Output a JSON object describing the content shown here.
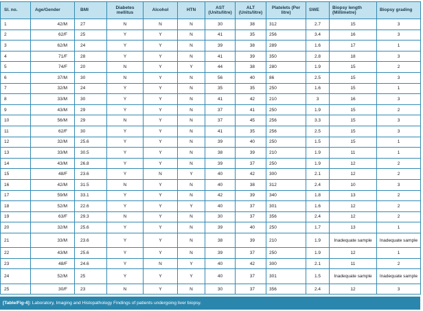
{
  "table": {
    "headers": [
      "Sl. no.",
      "Age/Gender",
      "BMI",
      "Diabetes mellitus",
      "Alcohol",
      "HTN",
      "AST (Units/litre)",
      "ALT (Units/litre)",
      "Platelets (Per litre)",
      "SWE",
      "Biopsy length (Millimetre)",
      "Biopsy grading"
    ],
    "rows": [
      [
        "1",
        "42/M",
        "27",
        "N",
        "N",
        "N",
        "30",
        "38",
        "312",
        "2.7",
        "15",
        "3"
      ],
      [
        "2",
        "62/F",
        "25",
        "Y",
        "Y",
        "N",
        "41",
        "35",
        "256",
        "3.4",
        "16",
        "3"
      ],
      [
        "3",
        "62/M",
        "24",
        "Y",
        "Y",
        "N",
        "39",
        "38",
        "289",
        "1.6",
        "17",
        "1"
      ],
      [
        "4",
        "71/F",
        "28",
        "Y",
        "Y",
        "N",
        "41",
        "39",
        "350",
        "2.8",
        "18",
        "3"
      ],
      [
        "5",
        "74/F",
        "20",
        "N",
        "Y",
        "Y",
        "44",
        "38",
        "280",
        "1.9",
        "15",
        "2"
      ],
      [
        "6",
        "37/M",
        "30",
        "N",
        "Y",
        "N",
        "56",
        "40",
        "86",
        "2.5",
        "15",
        "3"
      ],
      [
        "7",
        "32/M",
        "24",
        "Y",
        "Y",
        "N",
        "35",
        "35",
        "250",
        "1.6",
        "15",
        "1"
      ],
      [
        "8",
        "33/M",
        "30",
        "Y",
        "Y",
        "N",
        "41",
        "42",
        "210",
        "3",
        "16",
        "3"
      ],
      [
        "9",
        "43/M",
        "29",
        "Y",
        "Y",
        "N",
        "37",
        "41",
        "250",
        "1.9",
        "15",
        "2"
      ],
      [
        "10",
        "56/M",
        "29",
        "N",
        "Y",
        "N",
        "37",
        "45",
        "256",
        "3.3",
        "15",
        "3"
      ],
      [
        "11",
        "62/F",
        "30",
        "Y",
        "Y",
        "N",
        "41",
        "35",
        "256",
        "2.5",
        "15",
        "3"
      ],
      [
        "12",
        "32/M",
        "25.6",
        "Y",
        "Y",
        "N",
        "39",
        "40",
        "250",
        "1.5",
        "15",
        "1"
      ],
      [
        "13",
        "33/M",
        "30.5",
        "Y",
        "Y",
        "N",
        "38",
        "39",
        "210",
        "1.9",
        "11",
        "1"
      ],
      [
        "14",
        "43/M",
        "26.8",
        "Y",
        "Y",
        "N",
        "39",
        "37",
        "250",
        "1.9",
        "12",
        "2"
      ],
      [
        "15",
        "48/F",
        "23.6",
        "Y",
        "N",
        "Y",
        "40",
        "42",
        "300",
        "2.1",
        "12",
        "2"
      ],
      [
        "16",
        "42/M",
        "31.5",
        "N",
        "Y",
        "N",
        "40",
        "38",
        "312",
        "2.4",
        "10",
        "3"
      ],
      [
        "17",
        "59/M",
        "33.1",
        "Y",
        "Y",
        "N",
        "42",
        "39",
        "340",
        "1.8",
        "13",
        "2"
      ],
      [
        "18",
        "52/M",
        "22.6",
        "Y",
        "Y",
        "Y",
        "40",
        "37",
        "301",
        "1.6",
        "12",
        "2"
      ],
      [
        "19",
        "63/F",
        "29.3",
        "N",
        "Y",
        "N",
        "30",
        "37",
        "356",
        "2.4",
        "12",
        "2"
      ],
      [
        "20",
        "32/M",
        "25.6",
        "Y",
        "Y",
        "N",
        "39",
        "40",
        "250",
        "1.7",
        "13",
        "1"
      ],
      [
        "21",
        "33/M",
        "23.6",
        "Y",
        "Y",
        "N",
        "38",
        "39",
        "210",
        "1.9",
        "Inadequate sample",
        "Inadequate sample"
      ],
      [
        "22",
        "43/M",
        "25.6",
        "Y",
        "Y",
        "N",
        "39",
        "37",
        "250",
        "1.9",
        "12",
        "1"
      ],
      [
        "23",
        "48/F",
        "24.6",
        "Y",
        "N",
        "Y",
        "40",
        "42",
        "300",
        "2.1",
        "11",
        "2"
      ],
      [
        "24",
        "52/M",
        "25",
        "Y",
        "Y",
        "Y",
        "40",
        "37",
        "301",
        "1.5",
        "Inadequate sample",
        "Inadequate sample"
      ],
      [
        "25",
        "30/F",
        "23",
        "N",
        "Y",
        "N",
        "30",
        "37",
        "356",
        "2.4",
        "12",
        "3"
      ]
    ]
  },
  "caption": {
    "label": "[Table/Fig-4]:",
    "text": " Laboratory, Imaging and Histopathology Findings of patients undergoing liver biopsy."
  },
  "colors": {
    "header_background": "#c2e2ef",
    "border": "#2f88b0",
    "caption_background": "#2b86ad"
  }
}
